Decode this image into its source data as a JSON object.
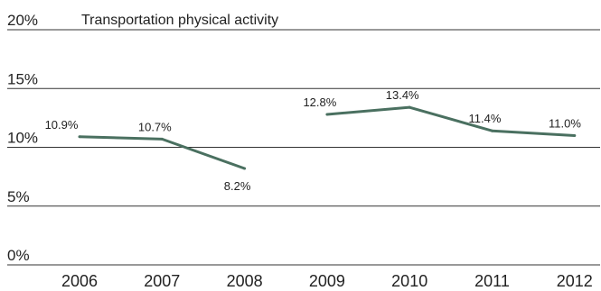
{
  "chart_data": {
    "type": "line",
    "title": "Transportation physical activity",
    "categories": [
      "2006",
      "2007",
      "2008",
      "2009",
      "2010",
      "2011",
      "2012"
    ],
    "series": [
      {
        "values": [
          10.9,
          10.7,
          8.2,
          12.8,
          13.4,
          11.4,
          11.0
        ],
        "labels": [
          "10.9%",
          "10.7%",
          "8.2%",
          "12.8%",
          "13.4%",
          "11.4%",
          "11.0%"
        ],
        "segments": [
          [
            0,
            2
          ],
          [
            3,
            6
          ]
        ],
        "color": "#4a7060"
      }
    ],
    "yticks": [
      0,
      5,
      10,
      15,
      20
    ],
    "ytick_labels": [
      "0%",
      "5%",
      "10%",
      "15%",
      "20%"
    ],
    "ylim": [
      0,
      20
    ],
    "grid": true,
    "legend": "none"
  }
}
